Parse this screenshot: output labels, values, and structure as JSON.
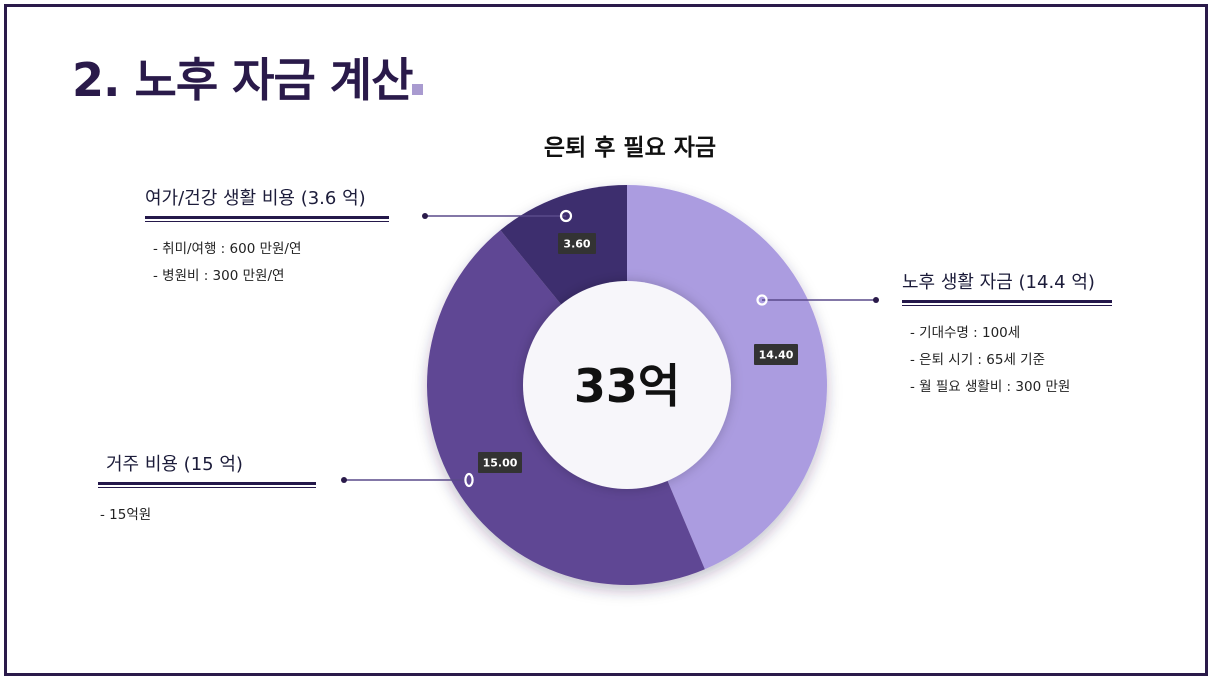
{
  "title": "2. 노후 자금 계산",
  "chart_data": {
    "type": "pie",
    "title": "은퇴 후 필요 자금",
    "center_label": "33억",
    "slices": [
      {
        "name": "노후 생활 자금",
        "value": 14.4,
        "label": "14.40",
        "color": "#ab9ce0"
      },
      {
        "name": "거주 비용",
        "value": 15.0,
        "label": "15.00",
        "color": "#5f4694"
      },
      {
        "name": "여가/건강 생활 비용",
        "value": 3.6,
        "label": "3.60",
        "color": "#3e2d6e"
      }
    ]
  },
  "callouts": {
    "living": {
      "heading": "노후 생활 자금 (14.4 억)",
      "details": [
        "- 기대수명 : 100세",
        "- 은퇴 시기 : 65세 기준",
        "- 월 필요 생활비 : 300 만원"
      ]
    },
    "housing": {
      "heading": "거주 비용 (15 억)",
      "details": [
        "- 15억원"
      ]
    },
    "leisure": {
      "heading": "여가/건강 생활 비용 (3.6 억)",
      "details": [
        "- 취미/여행 : 600 만원/연",
        "- 병원비 : 300 만원/연"
      ]
    }
  }
}
